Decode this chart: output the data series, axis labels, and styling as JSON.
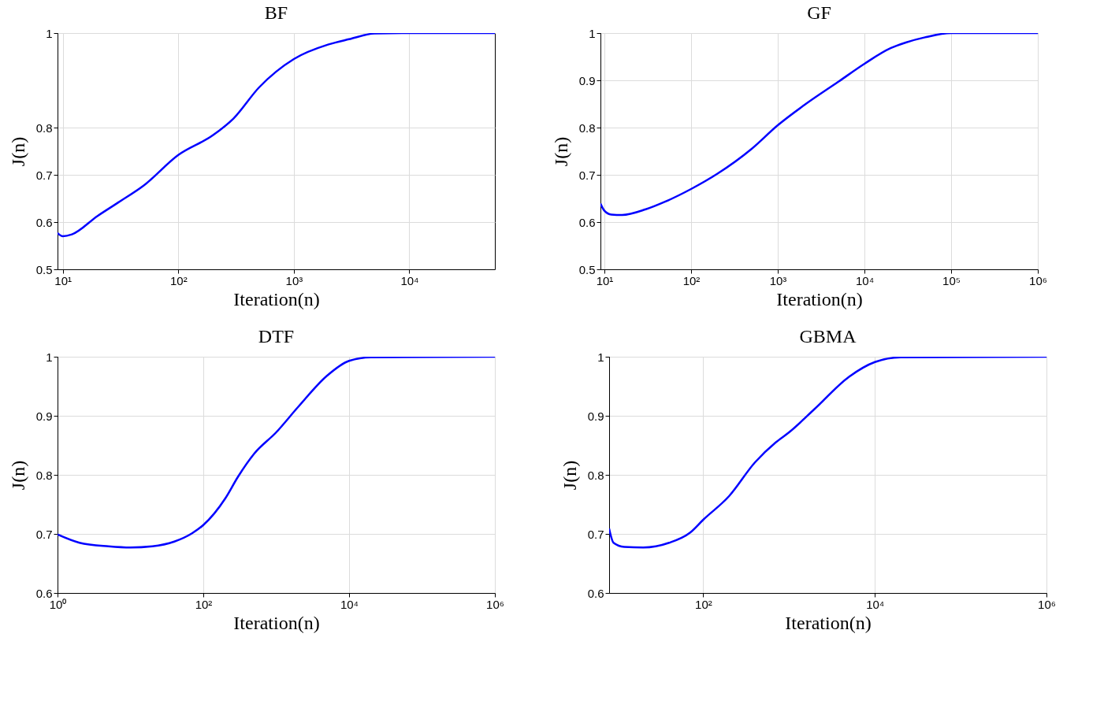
{
  "chart_data": [
    {
      "type": "line",
      "title": "BF",
      "xlabel": "Iteration(n)",
      "ylabel": "J(n)",
      "log": "x",
      "grid": true,
      "x": [
        9,
        10,
        12,
        20,
        30,
        50,
        100,
        200,
        300,
        500,
        1000,
        2000,
        3000,
        5000,
        10000,
        55000
      ],
      "series": [
        {
          "color": "#0000ff",
          "values": [
            0.577,
            0.57,
            0.574,
            0.613,
            0.641,
            0.677,
            0.742,
            0.784,
            0.819,
            0.885,
            0.945,
            0.976,
            0.987,
            0.999,
            1,
            1
          ]
        }
      ],
      "xlim": [
        9,
        55000
      ],
      "xticks": [
        {
          "value": 10,
          "label": "10¹"
        },
        {
          "value": 100,
          "label": "10²"
        },
        {
          "value": 1000,
          "label": "10³"
        },
        {
          "value": 10000,
          "label": "10⁴"
        }
      ],
      "ylim": [
        0.5,
        1
      ],
      "yticks": [
        0.5,
        0.6,
        0.7,
        0.8,
        1
      ]
    },
    {
      "type": "line",
      "title": "GF",
      "xlabel": "Iteration(n)",
      "ylabel": "J(n)",
      "log": "x",
      "grid": true,
      "x": [
        9,
        10,
        12,
        16,
        30,
        50,
        100,
        200,
        500,
        1000,
        2000,
        5000,
        10000,
        20000,
        30000,
        50000,
        100000,
        1000000
      ],
      "series": [
        {
          "color": "#0000ff",
          "values": [
            0.639,
            0.624,
            0.616,
            0.615,
            0.627,
            0.643,
            0.67,
            0.702,
            0.755,
            0.805,
            0.847,
            0.897,
            0.935,
            0.968,
            0.98,
            0.991,
            1,
            1
          ]
        }
      ],
      "xlim": [
        9,
        1000000
      ],
      "xticks": [
        {
          "value": 10,
          "label": "10¹"
        },
        {
          "value": 100,
          "label": "10²"
        },
        {
          "value": 1000,
          "label": "10³"
        },
        {
          "value": 10000,
          "label": "10⁴"
        },
        {
          "value": 100000,
          "label": "10⁵"
        },
        {
          "value": 1000000,
          "label": "10⁶"
        }
      ],
      "ylim": [
        0.5,
        1
      ],
      "yticks": [
        0.5,
        0.6,
        0.7,
        0.8,
        0.9,
        1
      ]
    },
    {
      "type": "line",
      "title": "DTF",
      "xlabel": "Iteration(n)",
      "ylabel": "J(n)",
      "log": "x",
      "grid": true,
      "x": [
        1,
        2,
        5,
        10,
        20,
        40,
        70,
        100,
        200,
        300,
        500,
        1000,
        2000,
        5000,
        10000,
        20000,
        1000000
      ],
      "series": [
        {
          "color": "#0000ff",
          "values": [
            0.699,
            0.685,
            0.679,
            0.677,
            0.679,
            0.687,
            0.701,
            0.715,
            0.76,
            0.797,
            0.836,
            0.872,
            0.915,
            0.968,
            0.993,
            0.999,
            1
          ]
        }
      ],
      "xlim": [
        1,
        1000000
      ],
      "xticks": [
        {
          "value": 1,
          "label": "10⁰"
        },
        {
          "value": 100,
          "label": "10²"
        },
        {
          "value": 10000,
          "label": "10⁴"
        },
        {
          "value": 1000000,
          "label": "10⁶"
        }
      ],
      "ylim": [
        0.6,
        1
      ],
      "yticks": [
        0.6,
        0.7,
        0.8,
        0.9,
        1
      ]
    },
    {
      "type": "line",
      "title": "GBMA",
      "xlabel": "Iteration(n)",
      "ylabel": "J(n)",
      "log": "x",
      "grid": true,
      "x": [
        8,
        9,
        12,
        20,
        40,
        70,
        100,
        200,
        400,
        700,
        1000,
        2000,
        5000,
        10000,
        20000,
        1000000
      ],
      "series": [
        {
          "color": "#0000ff",
          "values": [
            0.709,
            0.685,
            0.678,
            0.677,
            0.685,
            0.702,
            0.724,
            0.764,
            0.821,
            0.855,
            0.872,
            0.912,
            0.966,
            0.991,
            0.999,
            1
          ]
        }
      ],
      "xlim": [
        8,
        1000000
      ],
      "xticks": [
        {
          "value": 100,
          "label": "10²"
        },
        {
          "value": 10000,
          "label": "10⁴"
        },
        {
          "value": 1000000,
          "label": "10⁶"
        }
      ],
      "ylim": [
        0.6,
        1
      ],
      "yticks": [
        0.6,
        0.7,
        0.8,
        0.9,
        1
      ]
    }
  ]
}
